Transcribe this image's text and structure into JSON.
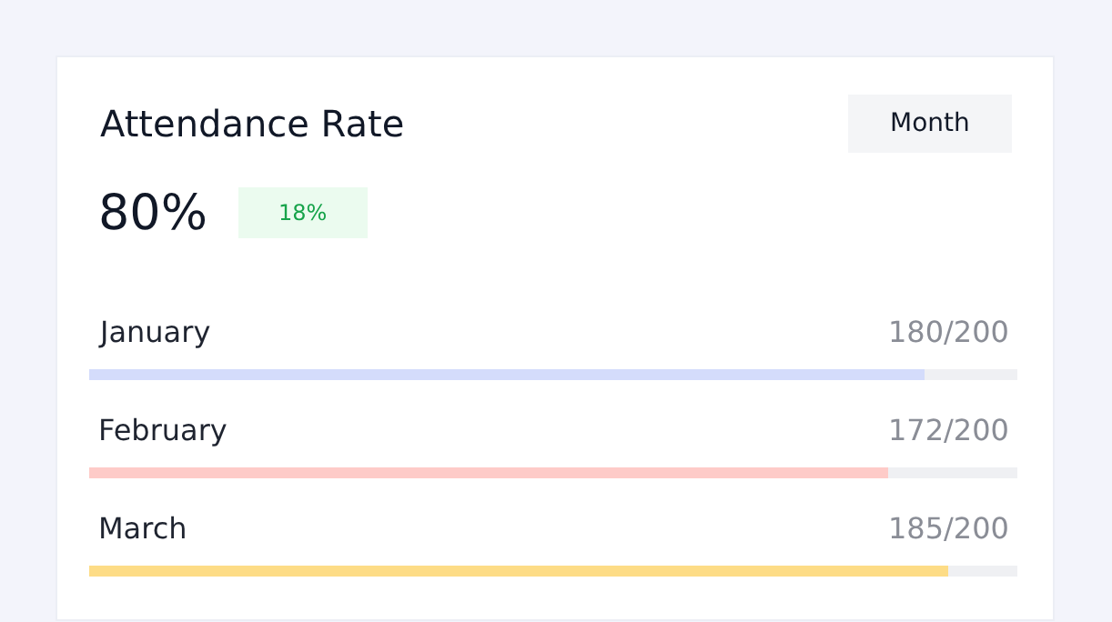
{
  "chart_data": {
    "type": "bar",
    "orientation": "horizontal",
    "title": "Attendance Rate",
    "categories": [
      "January",
      "February",
      "March"
    ],
    "values": [
      180,
      172,
      185
    ],
    "colors": [
      "#d4dcfb",
      "#fecbc8",
      "#fddc86"
    ],
    "value_labels": [
      "180/200",
      "172/200",
      "185/200"
    ],
    "xlim": [
      0,
      200
    ],
    "tick_labels": false,
    "legend": false,
    "annotations": [
      "80%",
      "18%",
      "Month"
    ]
  }
}
